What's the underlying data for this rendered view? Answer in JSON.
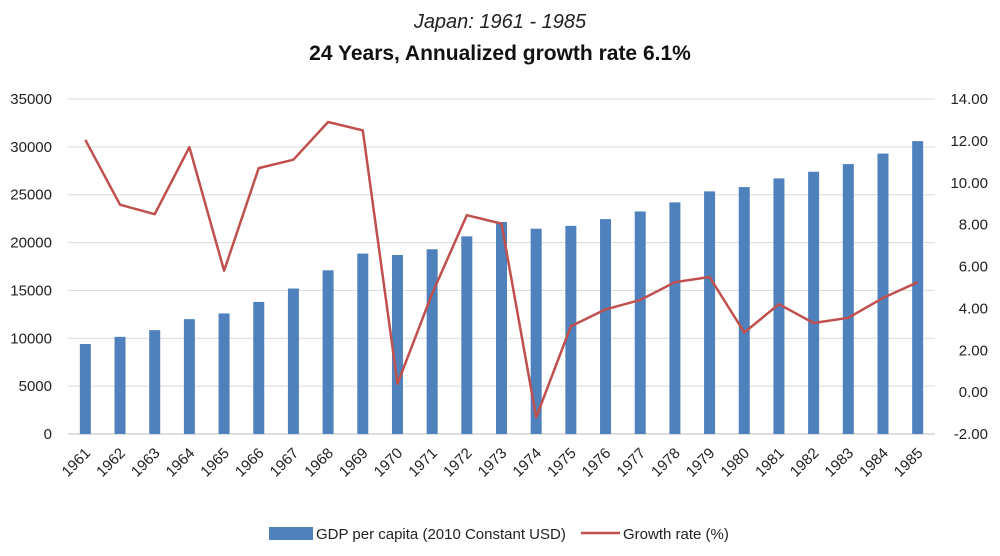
{
  "chart_data": {
    "type": "bar",
    "title": "24 Years, Annualized growth rate 6.1%",
    "subtitle": "Japan: 1961 - 1985",
    "categories": [
      "1961",
      "1962",
      "1963",
      "1964",
      "1965",
      "1966",
      "1967",
      "1968",
      "1969",
      "1970",
      "1971",
      "1972",
      "1973",
      "1974",
      "1975",
      "1976",
      "1977",
      "1978",
      "1979",
      "1980",
      "1981",
      "1982",
      "1983",
      "1984",
      "1985"
    ],
    "series": [
      {
        "name": "GDP per capita (2010 Constant USD)",
        "type": "bar",
        "axis": "left",
        "color": "#4f81bd",
        "values": [
          9400,
          10150,
          10850,
          12000,
          12600,
          13800,
          15200,
          17100,
          18850,
          18700,
          19300,
          20650,
          22150,
          21450,
          21750,
          22450,
          23250,
          24200,
          25350,
          25800,
          26700,
          27400,
          28200,
          29300,
          30600
        ]
      },
      {
        "name": "Growth rate (%)",
        "type": "line",
        "axis": "right",
        "color": "#c0504d",
        "values": [
          12.05,
          8.95,
          8.5,
          11.7,
          5.8,
          10.7,
          11.1,
          12.9,
          12.5,
          0.4,
          4.7,
          8.45,
          8.05,
          -1.2,
          3.15,
          3.95,
          4.4,
          5.25,
          5.5,
          2.85,
          4.2,
          3.3,
          3.55,
          4.5,
          5.25
        ]
      }
    ],
    "y_left": {
      "range": [
        0,
        35000
      ],
      "ticks": [
        "0",
        "5000",
        "10000",
        "15000",
        "20000",
        "25000",
        "30000",
        "35000"
      ]
    },
    "y_right": {
      "range": [
        -2,
        14
      ],
      "ticks": [
        "-2.00",
        "0.00",
        "2.00",
        "4.00",
        "6.00",
        "8.00",
        "10.00",
        "12.00",
        "14.00"
      ]
    },
    "grid": true,
    "legend": "bottom-center"
  }
}
